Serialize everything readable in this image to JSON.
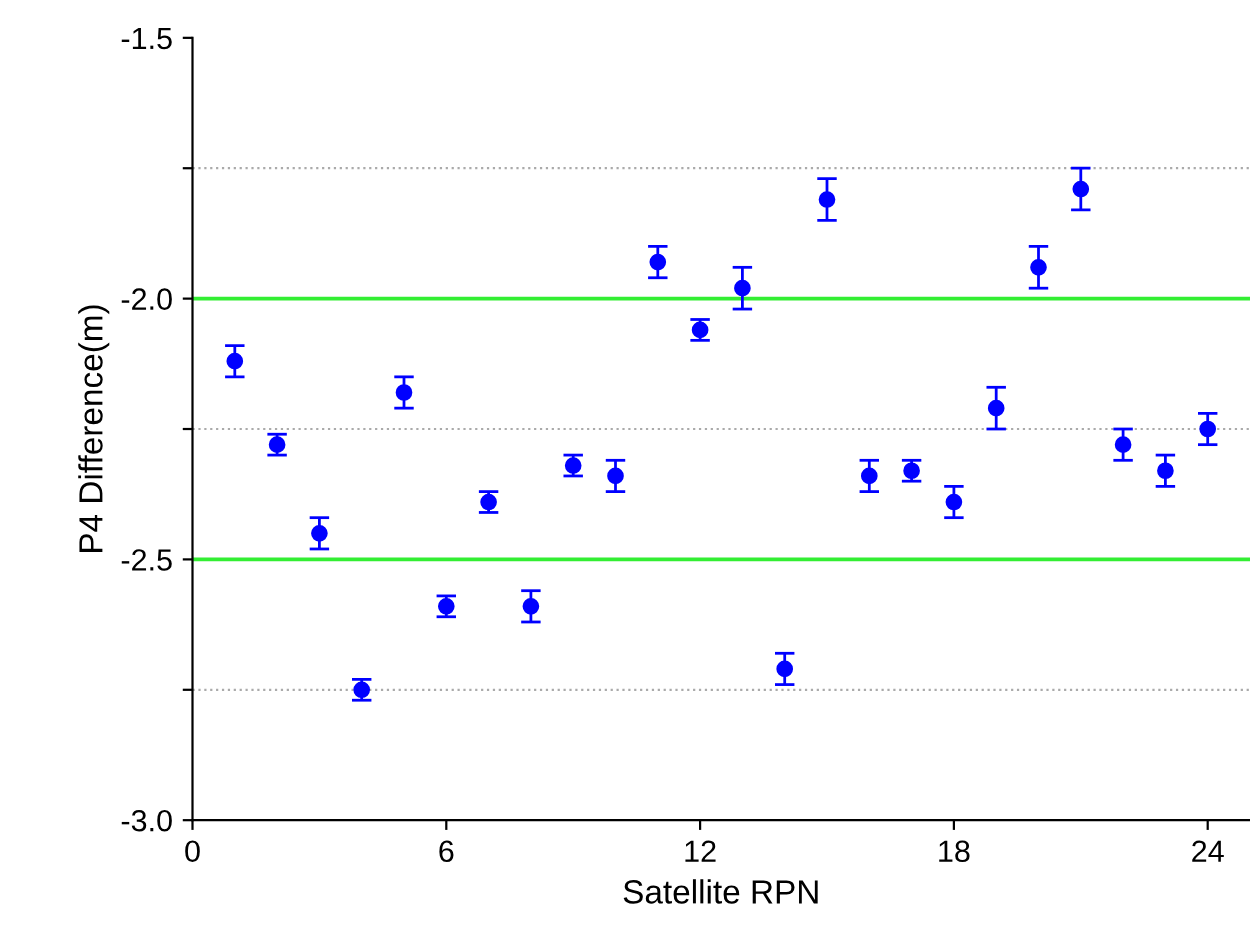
{
  "chart_data": {
    "type": "scatter",
    "xlabel": "Satellite RPN",
    "ylabel": "P4 Difference(m)",
    "x": [
      1,
      2,
      3,
      4,
      5,
      6,
      7,
      8,
      9,
      10,
      11,
      12,
      13,
      14,
      15,
      16,
      17,
      18,
      19,
      20,
      21,
      22,
      23,
      24
    ],
    "series": [
      {
        "color": "#0000ff",
        "values": [
          -2.12,
          -2.28,
          -2.45,
          -2.75,
          -2.18,
          -2.59,
          -2.39,
          -2.59,
          -2.32,
          -2.34,
          -1.93,
          -2.06,
          -1.98,
          -2.71,
          -1.81,
          -2.34,
          -2.33,
          -2.39,
          -2.21,
          -1.94,
          -1.79,
          -2.28,
          -2.33,
          -2.25
        ],
        "errors": [
          0.03,
          0.02,
          0.03,
          0.02,
          0.03,
          0.02,
          0.02,
          0.03,
          0.02,
          0.03,
          0.03,
          0.02,
          0.04,
          0.03,
          0.04,
          0.03,
          0.02,
          0.03,
          0.04,
          0.04,
          0.04,
          0.03,
          0.03,
          0.03
        ]
      }
    ],
    "marker": "circle",
    "xlim": [
      0,
      25
    ],
    "xticks": [
      0,
      6,
      12,
      18,
      24
    ],
    "ylim": [
      -3.0,
      -1.5
    ],
    "yticks": [
      {
        "value": -3.0,
        "label": "-3.0"
      },
      {
        "value": -2.75,
        "label": null
      },
      {
        "value": -2.5,
        "label": "-2.5"
      },
      {
        "value": -2.25,
        "label": null
      },
      {
        "value": -2.0,
        "label": "-2.0"
      },
      {
        "value": -1.75,
        "label": null
      },
      {
        "value": -1.5,
        "label": "-1.5"
      }
    ],
    "grid": "y"
  }
}
